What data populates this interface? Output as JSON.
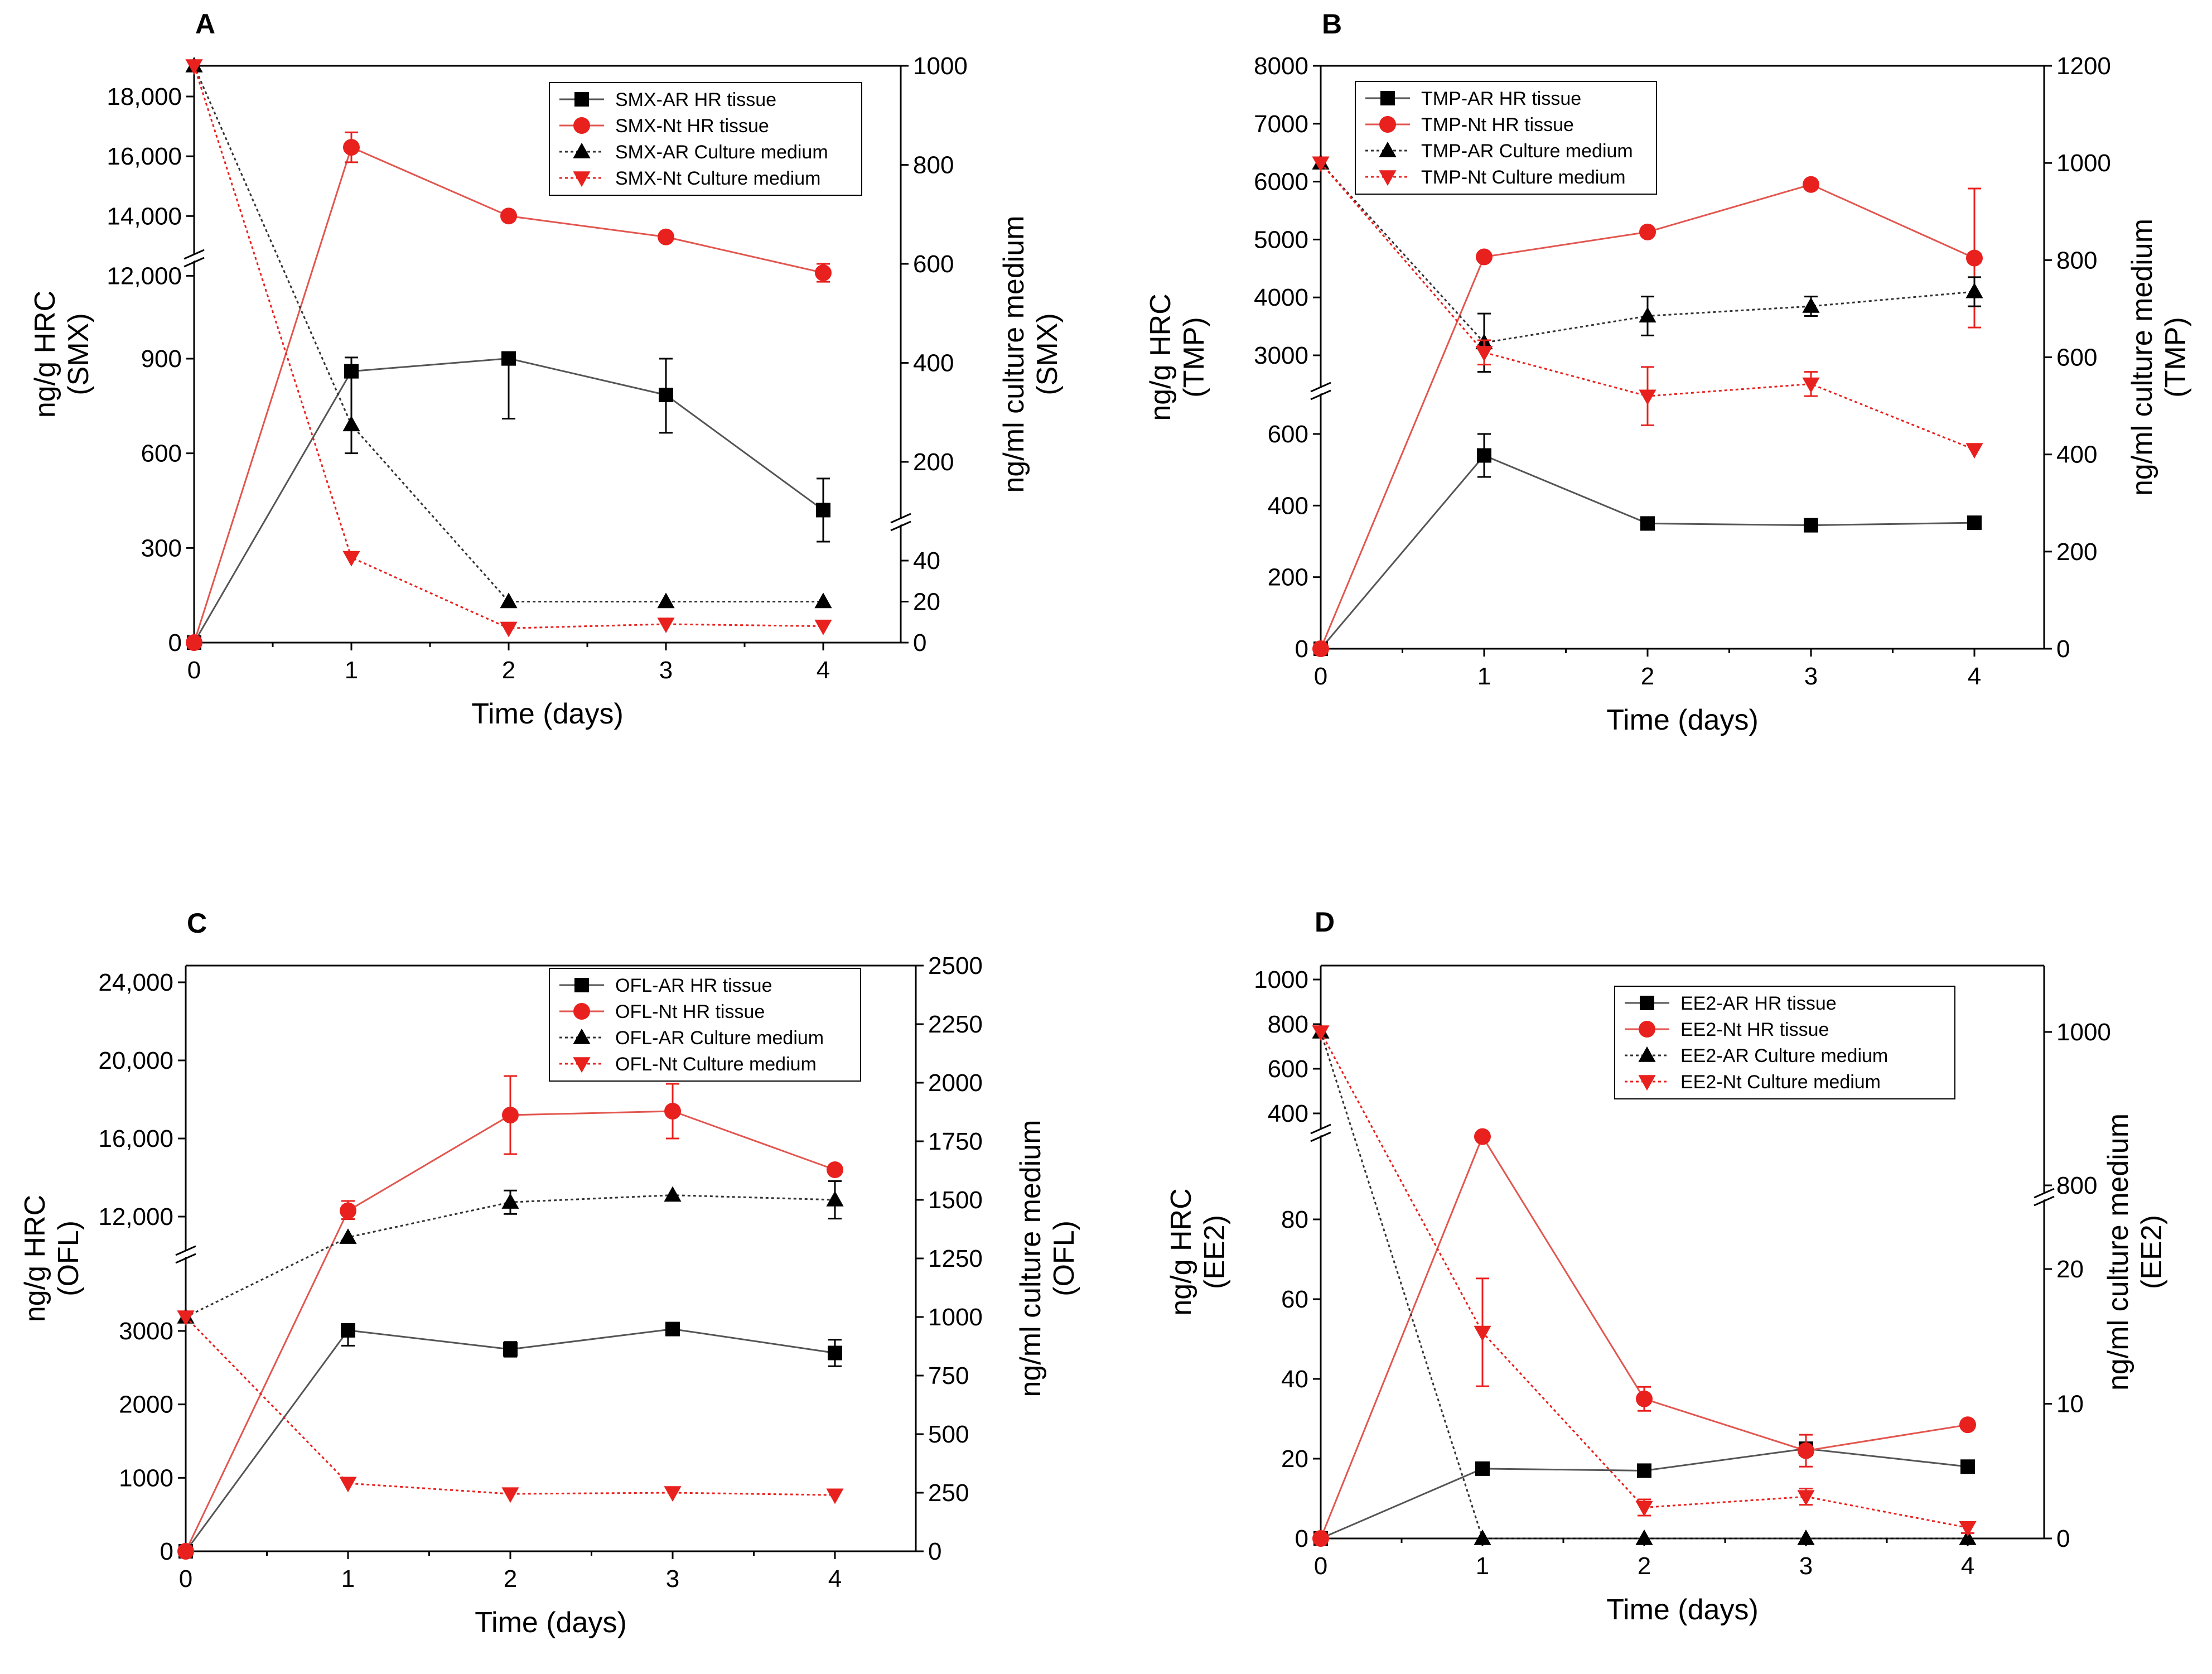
{
  "chart_data": [
    {
      "panel": "A",
      "type": "line",
      "x": [
        0,
        1,
        2,
        3,
        4
      ],
      "xticks": [
        "0",
        "1",
        "2",
        "3",
        "4"
      ],
      "xlabel": "Time (days)",
      "ylabel_left": [
        "ng/g  HRC",
        "(SMX)"
      ],
      "ylabel_right": [
        "ng/ml culture medium",
        "(SMX)"
      ],
      "left_lower_ticks": [
        "0",
        "300",
        "600",
        "900"
      ],
      "left_upper_ticks": [
        "12,000",
        "14,000",
        "16,000",
        "18,000"
      ],
      "right_lower_ticks": [
        "0",
        "20",
        "40"
      ],
      "right_upper_ticks": [
        "200",
        "400",
        "600",
        "800",
        "1000"
      ],
      "legend": [
        "SMX-AR HR tissue",
        "SMX-Nt HR tissue",
        "SMX-AR Culture medium",
        "SMX-Nt Culture medium"
      ],
      "series": [
        {
          "name": "SMX-AR HR tissue",
          "axis": "left",
          "values": [
            0,
            860,
            940,
            785,
            420
          ],
          "errors": [
            0,
            260,
            230,
            120,
            100
          ]
        },
        {
          "name": "SMX-Nt HR tissue",
          "axis": "left",
          "values": [
            0,
            16300,
            14000,
            13300,
            12100
          ],
          "errors": [
            0,
            500,
            0,
            0,
            300
          ]
        },
        {
          "name": "SMX-AR Culture medium",
          "axis": "right",
          "values": [
            1000,
            275,
            20,
            20,
            20
          ],
          "errors": [
            0,
            0,
            0,
            0,
            0
          ]
        },
        {
          "name": "SMX-Nt Culture medium",
          "axis": "right",
          "values": [
            1000,
            45,
            7,
            9,
            8
          ],
          "errors": [
            0,
            0,
            0,
            0,
            0
          ]
        }
      ]
    },
    {
      "panel": "B",
      "type": "line",
      "x": [
        0,
        1,
        2,
        3,
        4
      ],
      "xticks": [
        "0",
        "1",
        "2",
        "3",
        "4"
      ],
      "xlabel": "Time (days)",
      "ylabel_left": [
        "ng/g  HRC",
        "(TMP)"
      ],
      "ylabel_right": [
        "ng/ml culture medium",
        "(TMP)"
      ],
      "left_lower_ticks": [
        "0",
        "200",
        "400",
        "600"
      ],
      "left_upper_ticks": [
        "3000",
        "4000",
        "5000",
        "6000",
        "7000",
        "8000"
      ],
      "right_ticks": [
        "0",
        "200",
        "400",
        "600",
        "800",
        "1000",
        "1200"
      ],
      "legend": [
        "TMP-AR HR tissue",
        "TMP-Nt HR tissue",
        "TMP-AR Culture medium",
        "TMP-Nt Culture medium"
      ],
      "series": [
        {
          "name": "TMP-AR HR tissue",
          "axis": "left",
          "values": [
            0,
            540,
            350,
            345,
            352
          ],
          "errors": [
            0,
            60,
            0,
            15,
            0
          ]
        },
        {
          "name": "TMP-Nt HR tissue",
          "axis": "left",
          "values": [
            0,
            4700,
            5130,
            5950,
            4680
          ],
          "errors": [
            0,
            0,
            0,
            0,
            1200
          ]
        },
        {
          "name": "TMP-AR Culture medium",
          "axis": "right",
          "values": [
            1000,
            630,
            685,
            705,
            735
          ],
          "errors": [
            0,
            60,
            40,
            20,
            30
          ]
        },
        {
          "name": "TMP-Nt Culture medium",
          "axis": "right",
          "values": [
            1000,
            610,
            520,
            545,
            410
          ],
          "errors": [
            0,
            25,
            60,
            25,
            0
          ]
        }
      ]
    },
    {
      "panel": "C",
      "type": "line",
      "x": [
        0,
        1,
        2,
        3,
        4
      ],
      "xticks": [
        "0",
        "1",
        "2",
        "3",
        "4"
      ],
      "xlabel": "Time (days)",
      "ylabel_left": [
        "ng/g  HRC",
        "(OFL)"
      ],
      "ylabel_right": [
        "ng/ml culture medium",
        "(OFL)"
      ],
      "left_lower_ticks": [
        "0",
        "1000",
        "2000",
        "3000"
      ],
      "left_upper_ticks": [
        "12,000",
        "16,000",
        "20,000",
        "24,000"
      ],
      "right_ticks": [
        "0",
        "250",
        "500",
        "750",
        "1000",
        "1250",
        "1500",
        "1750",
        "2000",
        "2250",
        "2500"
      ],
      "legend": [
        "OFL-AR HR tissue",
        "OFL-Nt HR tissue",
        "OFL-AR Culture medium",
        "OFL-Nt Culture medium"
      ],
      "series": [
        {
          "name": "OFL-AR HR tissue",
          "axis": "left",
          "values": [
            0,
            3050,
            2750,
            3150,
            2700
          ],
          "errors": [
            0,
            250,
            100,
            200,
            180
          ]
        },
        {
          "name": "OFL-Nt HR tissue",
          "axis": "left",
          "values": [
            0,
            12300,
            17200,
            17400,
            14400
          ],
          "errors": [
            0,
            500,
            2000,
            1400,
            0
          ]
        },
        {
          "name": "OFL-AR Culture medium",
          "axis": "right",
          "values": [
            1000,
            1340,
            1490,
            1520,
            1500
          ],
          "errors": [
            0,
            0,
            50,
            0,
            80
          ]
        },
        {
          "name": "OFL-Nt Culture medium",
          "axis": "right",
          "values": [
            1000,
            290,
            245,
            250,
            240
          ],
          "errors": [
            0,
            0,
            0,
            0,
            0
          ]
        }
      ]
    },
    {
      "panel": "D",
      "type": "line",
      "x": [
        0,
        1,
        2,
        3,
        4
      ],
      "xticks": [
        "0",
        "1",
        "2",
        "3",
        "4"
      ],
      "xlabel": "Time (days)",
      "ylabel_left": [
        "ng/g  HRC",
        "(EE2)"
      ],
      "ylabel_right": [
        "ng/ml culture medium",
        "(EE2)"
      ],
      "left_lower_ticks": [
        "0",
        "20",
        "40",
        "60",
        "80"
      ],
      "left_upper_ticks": [
        "400",
        "600",
        "800",
        "1000"
      ],
      "right_lower_ticks": [
        "0",
        "10",
        "20"
      ],
      "right_upper_ticks": [
        "800",
        "1000"
      ],
      "legend": [
        "EE2-AR HR tissue",
        "EE2-Nt HR tissue",
        "EE2-AR Culture medium",
        "EE2-Nt Culture medium"
      ],
      "series": [
        {
          "name": "EE2-AR HR tissue",
          "axis": "left",
          "values": [
            0,
            17.5,
            17,
            22.5,
            18
          ],
          "errors": [
            0,
            0,
            0,
            0,
            0
          ]
        },
        {
          "name": "EE2-Nt HR tissue",
          "axis": "left",
          "values": [
            0,
            330,
            35,
            22,
            28.5
          ],
          "errors": [
            0,
            0,
            3,
            4,
            0
          ]
        },
        {
          "name": "EE2-AR Culture medium",
          "axis": "right",
          "values": [
            1000,
            0,
            0,
            0,
            0
          ],
          "errors": [
            0,
            0,
            0,
            0,
            0
          ]
        },
        {
          "name": "EE2-Nt Culture medium",
          "axis": "right",
          "values": [
            1000,
            15.3,
            2.3,
            3.1,
            0.8
          ],
          "errors": [
            0,
            4,
            0.6,
            0.6,
            0.4
          ]
        }
      ]
    }
  ],
  "colors": {
    "black": "#000000",
    "red": "#e8211e",
    "red_line": "#e2564f"
  }
}
